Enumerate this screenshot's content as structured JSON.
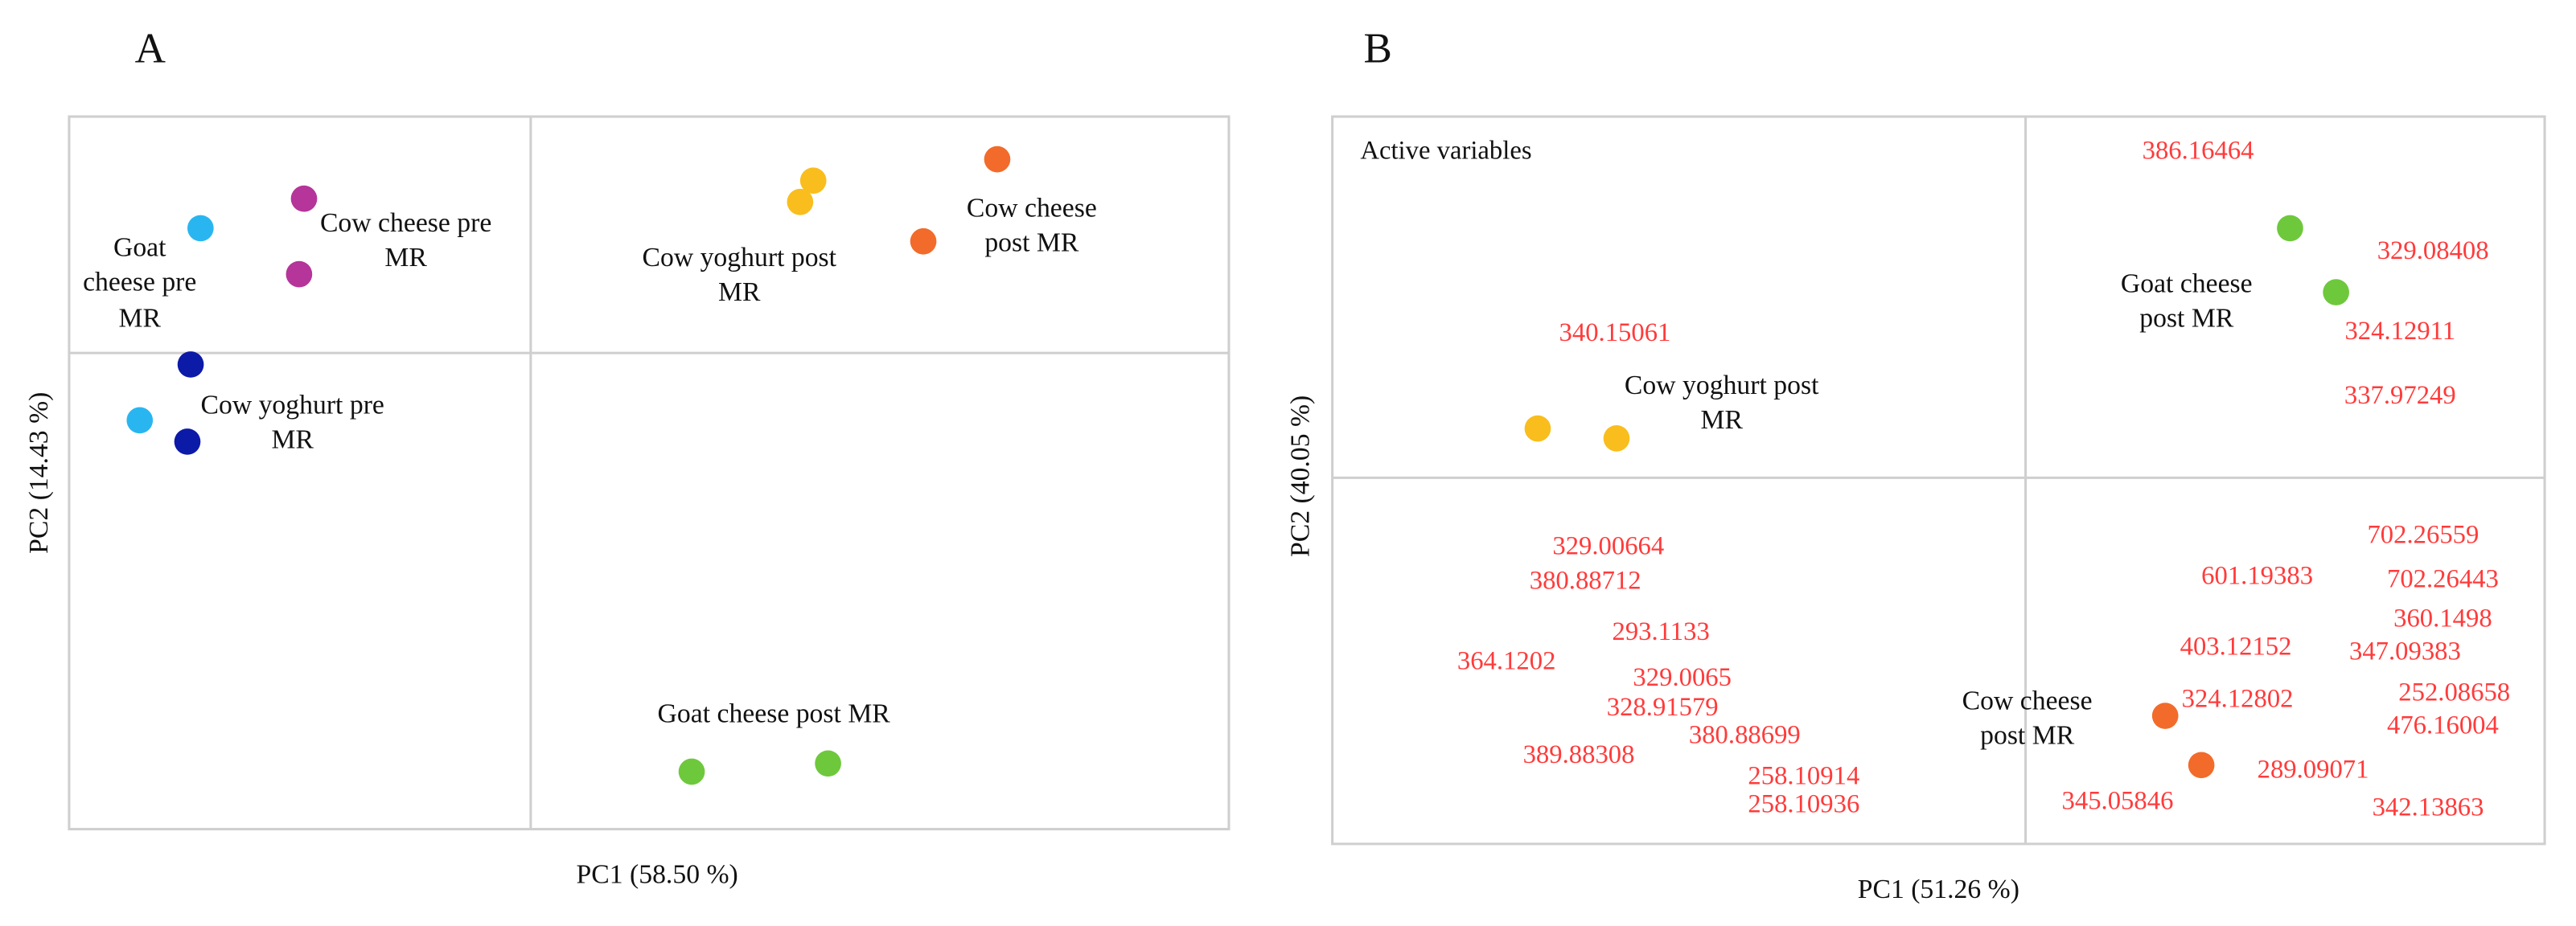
{
  "chart_data": [
    {
      "type": "scatter",
      "panel": "A",
      "x_label": "PC1 (58.50 %)",
      "y_label": "PC2 (14.43 %)",
      "xlim": [
        -2.81,
        4.25
      ],
      "ylim": [
        -2.9,
        1.44
      ],
      "series": [
        {
          "name": "Goat cheese pre MR",
          "color": "#29b6f0",
          "x": [
            -2.01,
            -2.38
          ],
          "y": [
            0.76,
            -0.41
          ]
        },
        {
          "name": "Cow cheese pre MR",
          "color": "#b5359a",
          "x": [
            -1.38,
            -1.41
          ],
          "y": [
            0.94,
            0.48
          ]
        },
        {
          "name": "Cow yoghurt pre MR",
          "color": "#0c1aa8",
          "x": [
            -2.07,
            -2.09
          ],
          "y": [
            -0.07,
            -0.54
          ]
        },
        {
          "name": "Cow yoghurt post MR",
          "color": "#f9be1d",
          "x": [
            1.72,
            1.64
          ],
          "y": [
            1.05,
            0.92
          ]
        },
        {
          "name": "Cow cheese post MR",
          "color": "#f26b2b",
          "x": [
            2.84,
            2.39
          ],
          "y": [
            1.18,
            0.68
          ]
        },
        {
          "name": "Goat cheese post MR",
          "color": "#6ec83c",
          "x": [
            0.98,
            1.81
          ],
          "y": [
            -2.55,
            -2.5
          ]
        }
      ]
    },
    {
      "type": "scatter",
      "panel": "B",
      "x_label": "PC1 (51.26 %)",
      "y_label": "PC2 (40.05 %)",
      "xlim": [
        -4.22,
        3.16
      ],
      "ylim": [
        -2.23,
        2.2
      ],
      "annotation": "Active variables",
      "variable_color": "#ff3b3b",
      "series": [
        {
          "name": "Cow yoghurt post MR",
          "color": "#f9be1d",
          "x": [
            -2.97,
            -2.49
          ],
          "y": [
            0.3,
            0.24
          ]
        },
        {
          "name": "Goat cheese post MR",
          "color": "#6ec83c",
          "x": [
            1.61,
            1.89
          ],
          "y": [
            1.52,
            1.13
          ]
        },
        {
          "name": "Cow cheese post MR",
          "color": "#f26b2b",
          "x": [
            0.85,
            1.07
          ],
          "y": [
            -1.45,
            -1.75
          ]
        }
      ],
      "variables": [
        {
          "label": "386.16464",
          "x": 1.05,
          "y": 1.98
        },
        {
          "label": "329.08408",
          "x": 2.48,
          "y": 1.37
        },
        {
          "label": "324.12911",
          "x": 2.28,
          "y": 0.88
        },
        {
          "label": "337.97249",
          "x": 2.28,
          "y": 0.49
        },
        {
          "label": "340.15061",
          "x": -2.5,
          "y": 0.87
        },
        {
          "label": "329.00664",
          "x": -2.54,
          "y": -0.43
        },
        {
          "label": "380.88712",
          "x": -2.68,
          "y": -0.64
        },
        {
          "label": "293.1133",
          "x": -2.22,
          "y": -0.95
        },
        {
          "label": "364.1202",
          "x": -3.16,
          "y": -1.13
        },
        {
          "label": "329.0065",
          "x": -2.09,
          "y": -1.23
        },
        {
          "label": "328.91579",
          "x": -2.21,
          "y": -1.41
        },
        {
          "label": "380.88699",
          "x": -1.71,
          "y": -1.58
        },
        {
          "label": "389.88308",
          "x": -2.72,
          "y": -1.7
        },
        {
          "label": "258.10914",
          "x": -1.35,
          "y": -1.83
        },
        {
          "label": "258.10936",
          "x": -1.35,
          "y": -2.0
        },
        {
          "label": "702.26559",
          "x": 2.42,
          "y": -0.36
        },
        {
          "label": "601.19383",
          "x": 1.41,
          "y": -0.61
        },
        {
          "label": "702.26443",
          "x": 2.54,
          "y": -0.63
        },
        {
          "label": "360.1498",
          "x": 2.54,
          "y": -0.87
        },
        {
          "label": "403.12152",
          "x": 1.28,
          "y": -1.04
        },
        {
          "label": "347.09383",
          "x": 2.31,
          "y": -1.07
        },
        {
          "label": "252.08658",
          "x": 2.61,
          "y": -1.32
        },
        {
          "label": "324.12802",
          "x": 1.29,
          "y": -1.36
        },
        {
          "label": "476.16004",
          "x": 2.54,
          "y": -1.52
        },
        {
          "label": "289.09071",
          "x": 1.75,
          "y": -1.79
        },
        {
          "label": "345.05846",
          "x": 0.56,
          "y": -1.98
        },
        {
          "label": "342.13863",
          "x": 2.45,
          "y": -2.02
        }
      ]
    }
  ]
}
